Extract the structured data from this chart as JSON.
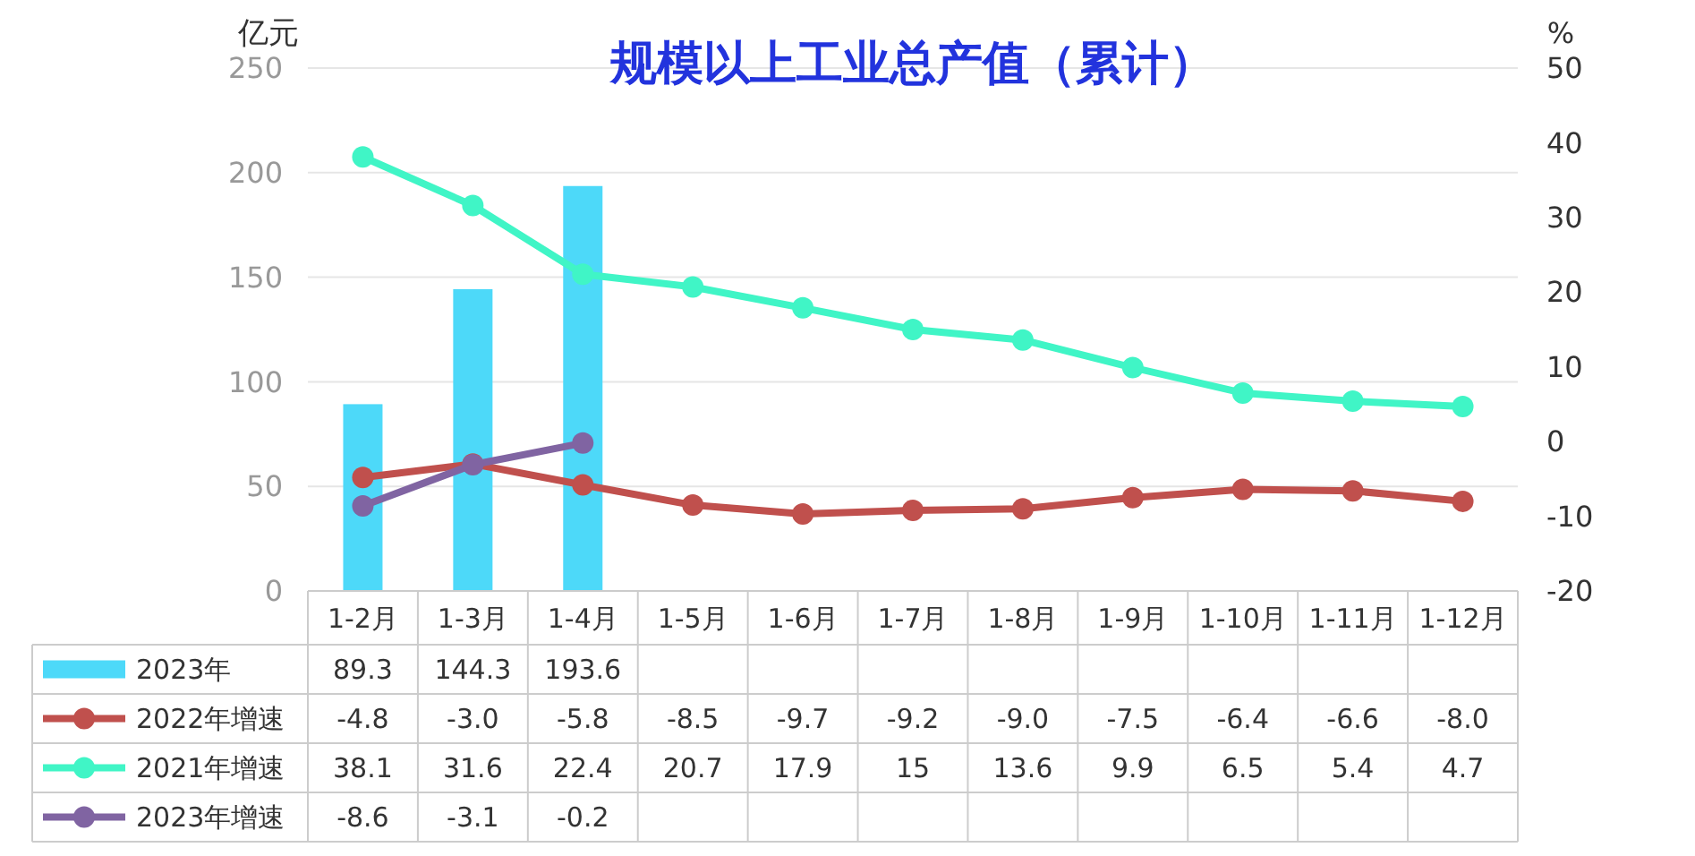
{
  "chart_data": {
    "type": "bar",
    "title": "规模以上工业总产值（累计）",
    "ylabel": "亿元",
    "y2label": "%",
    "categories": [
      "1-2月",
      "1-3月",
      "1-4月",
      "1-5月",
      "1-6月",
      "1-7月",
      "1-8月",
      "1-9月",
      "1-10月",
      "1-11月",
      "1-12月"
    ],
    "series": [
      {
        "name": "2023年",
        "color": "#4dd9f9",
        "values": [
          89.3,
          144.3,
          193.6,
          null,
          null,
          null,
          null,
          null,
          null,
          null,
          null
        ]
      },
      {
        "name": "2022年增速",
        "type": "line",
        "axis": "y2",
        "color": "#c0504d",
        "values": [
          -4.8,
          -3.0,
          -5.8,
          -8.5,
          -9.7,
          -9.2,
          -9.0,
          -7.5,
          -6.4,
          -6.6,
          -8.0
        ],
        "value_labels": [
          "-4.8",
          "-3.0",
          "-5.8",
          "-8.5",
          "-9.7",
          "-9.2",
          "-9.0",
          "-7.5",
          "-6.4",
          "-6.6",
          "-8.0"
        ]
      },
      {
        "name": "2021年增速",
        "type": "line",
        "axis": "y2",
        "color": "#40f5c6",
        "values": [
          38.1,
          31.6,
          22.4,
          20.7,
          17.9,
          15,
          13.6,
          9.9,
          6.5,
          5.4,
          4.7
        ]
      },
      {
        "name": "2023年增速",
        "type": "line",
        "axis": "y2",
        "color": "#8064a2",
        "values": [
          -8.6,
          -3.1,
          -0.2,
          null,
          null,
          null,
          null,
          null,
          null,
          null,
          null
        ]
      }
    ],
    "ylim": [
      0,
      250
    ],
    "yticks": [
      0,
      50,
      100,
      150,
      200,
      250
    ],
    "y2lim": [
      -20,
      50
    ],
    "y2ticks": [
      -20,
      -10,
      0,
      10,
      20,
      30,
      40,
      50
    ],
    "grid": "y",
    "legend": "bottom",
    "marker": "circle",
    "data_labels": true
  }
}
